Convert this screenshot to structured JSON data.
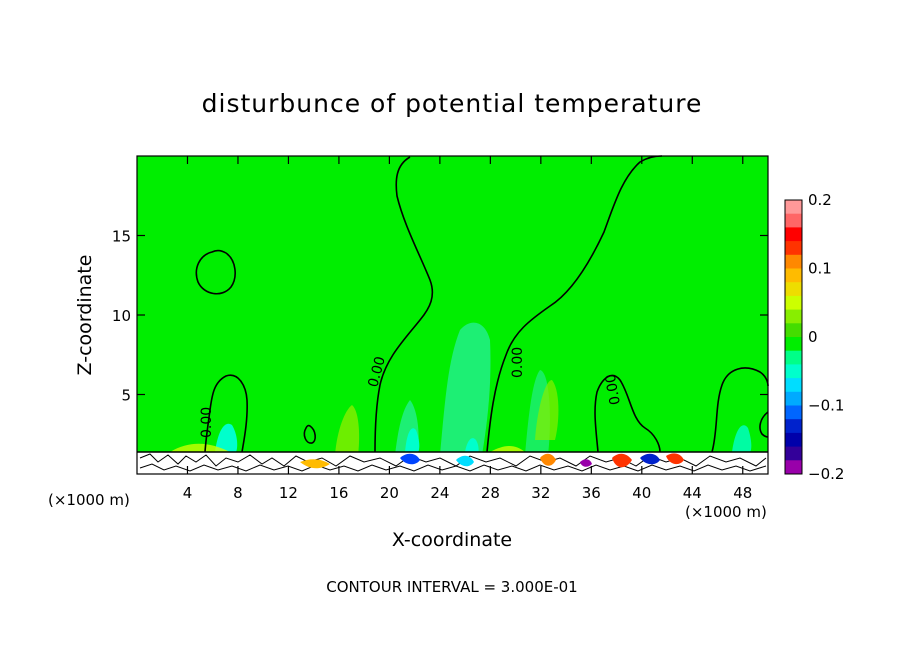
{
  "chart_data": {
    "type": "heatmap",
    "title": "disturbunce of potential temperature",
    "xlabel": "X-coordinate",
    "ylabel": "Z-coordinate",
    "x_unit": "(×1000 m)",
    "x_unit_right": "(×1000 m)",
    "xlim": [
      0,
      50
    ],
    "ylim": [
      0,
      20
    ],
    "x_ticks": [
      4,
      8,
      12,
      16,
      20,
      24,
      28,
      32,
      36,
      40,
      44,
      48
    ],
    "y_ticks": [
      5,
      10,
      15
    ],
    "contour_label": "0.00",
    "contour_interval_text": "CONTOUR INTERVAL = 3.000E-01",
    "colorbar": {
      "min": -0.2,
      "max": 0.2,
      "tick_labels": [
        "0.2",
        "0.1",
        "0",
        "−0.1",
        "−0.2"
      ],
      "tick_values": [
        0.2,
        0.1,
        0,
        -0.1,
        -0.2
      ],
      "colors": [
        "#ff9999",
        "#ff6666",
        "#ff0000",
        "#ff3300",
        "#ff8800",
        "#ffbb00",
        "#eedd00",
        "#ccff00",
        "#88ee00",
        "#44dd00",
        "#00ee00",
        "#00ff88",
        "#00ffcc",
        "#00ddff",
        "#00aaff",
        "#0066ff",
        "#0022cc",
        "#0000aa",
        "#330099",
        "#9900aa"
      ]
    },
    "background_value_color": "#00ee00",
    "grid": false
  }
}
